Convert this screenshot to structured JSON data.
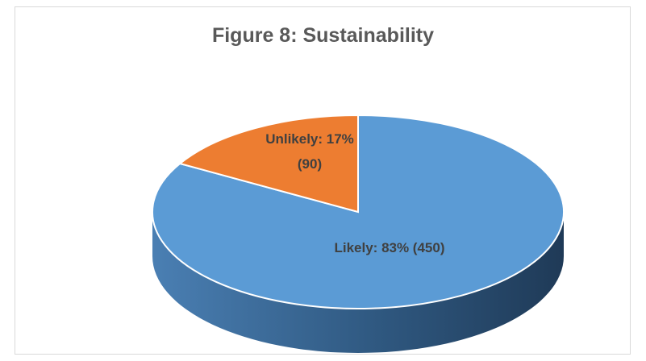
{
  "chart_data": {
    "type": "pie",
    "title": "Figure 8: Sustainability",
    "slices": [
      {
        "label": "Unlikely: 17%",
        "label2": "(90)",
        "value": 90,
        "percent": 17,
        "color": "#ED7D31"
      },
      {
        "label": "Likely: 83% (450)",
        "label2": "",
        "value": 450,
        "percent": 83,
        "color": "#5B9BD5"
      }
    ]
  }
}
